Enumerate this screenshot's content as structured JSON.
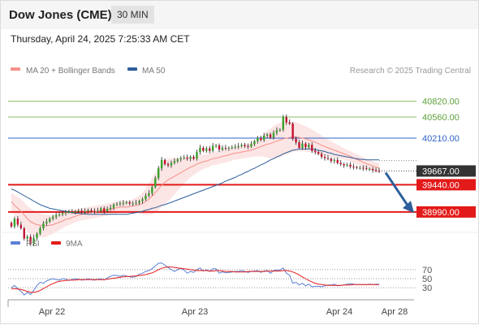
{
  "header": {
    "title": "Dow Jones (CME)",
    "interval": "30 MIN"
  },
  "date_line": "Thursday, April 24, 2025 7:25:33 AM CET",
  "legend": {
    "ma20_label": "MA 20 + Bollinger Bands",
    "ma50_label": "MA 50",
    "credit": "Research © 2025 Trading Central",
    "ma20_color": "#f4908a",
    "ma50_color": "#2d5f9a"
  },
  "rsi_legend": {
    "rsi_label": "RSI",
    "ma_label": "9MA",
    "rsi_color": "#5b7fd4",
    "ma_color": "#e31a1a"
  },
  "chart_data": [
    {
      "type": "candlestick",
      "title": "Dow Jones (CME)",
      "ylim": [
        38760,
        41150
      ],
      "x_ticks": [
        "Apr 22",
        "Apr 23",
        "Apr 24",
        "Apr 28"
      ],
      "levels": [
        {
          "value": 40820,
          "label": "40820.00",
          "kind": "resistance",
          "color": "#8dbe5e"
        },
        {
          "value": 40560,
          "label": "40560.00",
          "kind": "resistance",
          "color": "#8dbe5e"
        },
        {
          "value": 40210,
          "label": "40210.00",
          "kind": "pivot",
          "color": "#2f63c8"
        },
        {
          "value": 39440,
          "label": "39440.00",
          "kind": "support",
          "color": "#e31a1a"
        },
        {
          "value": 38990,
          "label": "38990.00",
          "kind": "support",
          "color": "#e31a1a"
        }
      ],
      "last_price": {
        "value": 39667,
        "label": "39667.00"
      },
      "closes": [
        38750,
        38880,
        38780,
        38720,
        38550,
        38580,
        38460,
        38560,
        38630,
        38720,
        38800,
        38830,
        38880,
        38910,
        38940,
        38950,
        38970,
        38990,
        38990,
        38990,
        39000,
        39010,
        38990,
        39000,
        39020,
        39010,
        39000,
        39010,
        39050,
        39000,
        39040,
        39060,
        39110,
        39120,
        39130,
        39140,
        39150,
        39130,
        39130,
        39140,
        39170,
        39200,
        39260,
        39300,
        39400,
        39550,
        39710,
        39850,
        39780,
        39760,
        39800,
        39830,
        39860,
        39880,
        39890,
        39870,
        39900,
        39870,
        39980,
        40050,
        40000,
        40040,
        40000,
        40080,
        40090,
        40020,
        40050,
        40040,
        40050,
        40060,
        40070,
        40080,
        40100,
        40080,
        40070,
        40110,
        40160,
        40210,
        40180,
        40250,
        40270,
        40220,
        40300,
        40340,
        40350,
        40560,
        40470,
        40450,
        40200,
        40140,
        40050,
        40120,
        40060,
        40100,
        40000,
        39980,
        39950,
        39900,
        39880,
        39870,
        39830,
        39850,
        39800,
        39780,
        39760,
        39770,
        39740,
        39730,
        39720,
        39720,
        39710,
        39700,
        39700,
        39680,
        39670,
        39667
      ],
      "ma20": [
        39160,
        39100,
        39050,
        39000,
        38940,
        38880,
        38830,
        38800,
        38780,
        38770,
        38760,
        38760,
        38770,
        38780,
        38800,
        38820,
        38840,
        38870,
        38880,
        38900,
        38920,
        38940,
        38950,
        38960,
        38970,
        38980,
        38990,
        39000,
        39010,
        39020,
        39030,
        39040,
        39050,
        39060,
        39070,
        39070,
        39070,
        39080,
        39090,
        39100,
        39110,
        39130,
        39160,
        39200,
        39250,
        39310,
        39370,
        39430,
        39480,
        39520,
        39550,
        39580,
        39610,
        39640,
        39670,
        39700,
        39730,
        39750,
        39780,
        39800,
        39820,
        39830,
        39850,
        39870,
        39880,
        39890,
        39910,
        39920,
        39930,
        39950,
        39960,
        39970,
        39980,
        39990,
        40000,
        40010,
        40030,
        40050,
        40070,
        40090,
        40110,
        40120,
        40140,
        40160,
        40180,
        40200,
        40210,
        40220,
        40230,
        40230,
        40220,
        40210,
        40200,
        40180,
        40160,
        40140,
        40120,
        40090,
        40070,
        40050,
        40030,
        40010,
        39990,
        39970,
        39950,
        39930,
        39910,
        39880,
        39860,
        39840,
        39810,
        39790,
        39770,
        39750,
        39730,
        39720
      ],
      "bb_width": [
        150,
        170,
        190,
        200,
        210,
        215,
        215,
        210,
        205,
        200,
        190,
        180,
        165,
        150,
        140,
        130,
        120,
        115,
        110,
        105,
        100,
        100,
        100,
        100,
        100,
        100,
        100,
        100,
        100,
        100,
        100,
        100,
        100,
        100,
        100,
        100,
        100,
        100,
        110,
        130,
        150,
        180,
        220,
        260,
        300,
        330,
        350,
        360,
        360,
        350,
        330,
        300,
        270,
        240,
        210,
        190,
        170,
        150,
        140,
        130,
        120,
        115,
        110,
        110,
        110,
        110,
        110,
        110,
        110,
        110,
        110,
        110,
        110,
        110,
        110,
        115,
        125,
        140,
        160,
        190,
        220,
        250,
        270,
        280,
        280,
        280,
        270,
        260,
        250,
        240,
        230,
        220,
        210,
        200,
        190,
        180,
        170,
        160,
        150,
        140,
        130,
        120,
        110,
        100,
        95,
        90,
        90,
        85,
        85,
        80,
        80,
        80,
        80,
        80,
        80,
        80
      ],
      "ma50": [
        39370,
        39350,
        39320,
        39290,
        39260,
        39230,
        39200,
        39170,
        39140,
        39110,
        39090,
        39070,
        39050,
        39040,
        39030,
        39020,
        39010,
        39000,
        38990,
        38980,
        38970,
        38970,
        38960,
        38960,
        38950,
        38950,
        38950,
        38950,
        38950,
        38950,
        38950,
        38950,
        38950,
        38950,
        38950,
        38950,
        38950,
        38960,
        38970,
        38980,
        38990,
        39000,
        39020,
        39030,
        39050,
        39060,
        39080,
        39100,
        39110,
        39130,
        39150,
        39170,
        39190,
        39210,
        39230,
        39250,
        39270,
        39290,
        39310,
        39330,
        39350,
        39370,
        39390,
        39410,
        39430,
        39450,
        39470,
        39500,
        39520,
        39540,
        39560,
        39590,
        39610,
        39640,
        39660,
        39690,
        39710,
        39740,
        39770,
        39790,
        39820,
        39850,
        39870,
        39900,
        39920,
        39950,
        39970,
        39990,
        40010,
        40020,
        40030,
        40030,
        40030,
        40030,
        40030,
        40020,
        40010,
        40000,
        39990,
        39970,
        39960,
        39940,
        39930,
        39920,
        39910,
        39900,
        39890,
        39880,
        39870,
        39860,
        39860,
        39850,
        39850,
        39850,
        39850,
        39850
      ]
    },
    {
      "type": "line",
      "title": "RSI",
      "ylim": [
        5,
        95
      ],
      "y_ticks": [
        70,
        50,
        30
      ],
      "series": [
        {
          "name": "RSI",
          "values": [
            30,
            35,
            28,
            22,
            14,
            20,
            15,
            24,
            35,
            42,
            40,
            45,
            48,
            50,
            48,
            47,
            50,
            49,
            46,
            48,
            50,
            49,
            47,
            48,
            50,
            48,
            47,
            49,
            50,
            47,
            52,
            55,
            58,
            57,
            55,
            58,
            56,
            54,
            53,
            55,
            60,
            62,
            66,
            68,
            72,
            78,
            84,
            85,
            80,
            75,
            70,
            66,
            70,
            73,
            69,
            62,
            66,
            64,
            70,
            74,
            67,
            70,
            66,
            72,
            72,
            62,
            65,
            63,
            64,
            65,
            66,
            66,
            68,
            66,
            64,
            66,
            67,
            68,
            64,
            67,
            68,
            62,
            68,
            69,
            69,
            74,
            62,
            58,
            40,
            42,
            36,
            40,
            34,
            38,
            32,
            33,
            33,
            32,
            34,
            36,
            36,
            38,
            34,
            35,
            36,
            38,
            39,
            38,
            37,
            37,
            37,
            37,
            38,
            37,
            38,
            38
          ]
        },
        {
          "name": "9MA",
          "values": [
            28,
            28,
            27,
            26,
            24,
            22,
            20,
            20,
            21,
            24,
            28,
            32,
            36,
            39,
            42,
            44,
            45,
            46,
            47,
            47,
            47,
            48,
            48,
            48,
            48,
            48,
            48,
            48,
            48,
            48,
            49,
            50,
            51,
            52,
            53,
            54,
            55,
            55,
            56,
            56,
            57,
            58,
            59,
            61,
            63,
            66,
            70,
            73,
            75,
            76,
            76,
            75,
            74,
            73,
            72,
            71,
            70,
            69,
            68,
            68,
            68,
            68,
            67,
            67,
            68,
            68,
            67,
            66,
            66,
            66,
            65,
            65,
            65,
            65,
            66,
            66,
            66,
            66,
            66,
            66,
            67,
            67,
            67,
            67,
            67,
            68,
            68,
            67,
            65,
            62,
            58,
            54,
            50,
            46,
            43,
            40,
            38,
            37,
            36,
            35,
            35,
            35,
            35,
            35,
            36,
            36,
            36,
            37,
            37,
            37,
            37,
            37,
            37,
            37,
            37,
            37
          ]
        }
      ]
    }
  ]
}
